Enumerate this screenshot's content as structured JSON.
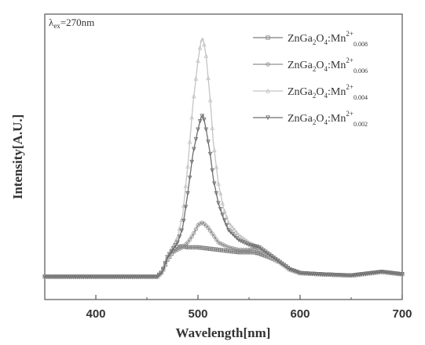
{
  "chart_data": {
    "type": "line",
    "xlabel": "Wavelength[nm]",
    "ylabel": "Intensity[A.U.]",
    "xlim": [
      350,
      700
    ],
    "ylim": [
      0,
      100
    ],
    "xticks": [
      400,
      500,
      600,
      700
    ],
    "grid": false,
    "annotation": {
      "lambda": "λ",
      "sub": "ex",
      "text": "=270nm"
    },
    "legend_position": "top-right",
    "series": [
      {
        "name": "ZnGa2O4:Mn2+ 0.008",
        "label": {
          "base": "ZnGa",
          "s1": "2",
          "mid": "O",
          "s2": "4",
          "tail": ":Mn",
          "sup": "2+",
          "sub": "0.008"
        },
        "color": "#7d7d7d",
        "marker": "square",
        "x": [
          350,
          400,
          460,
          465,
          470,
          475,
          480,
          485,
          490,
          495,
          500,
          510,
          520,
          530,
          540,
          550,
          555,
          560,
          570,
          580,
          590,
          600,
          620,
          650,
          680,
          700
        ],
        "y": [
          0,
          0,
          0,
          2,
          7,
          10,
          12,
          12.5,
          12,
          12,
          12,
          11.5,
          11,
          10.5,
          10,
          10,
          10,
          9.5,
          8,
          6,
          3,
          1.5,
          1,
          0.5,
          2,
          1
        ]
      },
      {
        "name": "ZnGa2O4:Mn2+ 0.006",
        "label": {
          "base": "ZnGa",
          "s1": "2",
          "mid": "O",
          "s2": "4",
          "tail": ":Mn",
          "sup": "2+",
          "sub": "0.006"
        },
        "color": "#8f8f8f",
        "marker": "circle",
        "x": [
          350,
          400,
          460,
          465,
          470,
          475,
          480,
          485,
          490,
          495,
          500,
          503,
          505,
          510,
          515,
          520,
          530,
          540,
          550,
          555,
          560,
          570,
          580,
          590,
          600,
          620,
          650,
          680,
          700
        ],
        "y": [
          0,
          0,
          0,
          2,
          7,
          10,
          11,
          12,
          14,
          17,
          21,
          22,
          22,
          20,
          17,
          14,
          12,
          11,
          11,
          11.5,
          11,
          9,
          6,
          3,
          1.5,
          1,
          0.5,
          2,
          1
        ]
      },
      {
        "name": "ZnGa2O4:Mn2+ 0.004",
        "label": {
          "base": "ZnGa",
          "s1": "2",
          "mid": "O",
          "s2": "4",
          "tail": ":Mn",
          "sup": "2+",
          "sub": "0.004"
        },
        "color": "#c4c4c4",
        "marker": "triangle-up",
        "x": [
          350,
          400,
          460,
          465,
          470,
          475,
          480,
          485,
          490,
          495,
          500,
          503,
          505,
          508,
          512,
          515,
          520,
          525,
          530,
          540,
          550,
          555,
          560,
          570,
          580,
          590,
          600,
          620,
          650,
          680,
          700
        ],
        "y": [
          0,
          0,
          0,
          2,
          8,
          12,
          16,
          25,
          45,
          70,
          88,
          96,
          97,
          90,
          72,
          55,
          38,
          28,
          22,
          17,
          14,
          13,
          12,
          9,
          6,
          3,
          1.5,
          1,
          0.5,
          2,
          1
        ]
      },
      {
        "name": "ZnGa2O4:Mn2+ 0.002",
        "label": {
          "base": "ZnGa",
          "s1": "2",
          "mid": "O",
          "s2": "4",
          "tail": ":Mn",
          "sup": "2+",
          "sub": "0.002"
        },
        "color": "#6e6e6e",
        "marker": "triangle-down",
        "x": [
          350,
          400,
          460,
          465,
          470,
          475,
          480,
          485,
          490,
          495,
          500,
          503,
          505,
          508,
          512,
          515,
          520,
          525,
          530,
          540,
          550,
          555,
          560,
          570,
          580,
          590,
          600,
          620,
          650,
          680,
          700
        ],
        "y": [
          0,
          0,
          0,
          2,
          8,
          11,
          14,
          20,
          34,
          50,
          60,
          65,
          66,
          60,
          50,
          40,
          30,
          24,
          19,
          15,
          13,
          12.5,
          12,
          9,
          6,
          3,
          1.5,
          1,
          0.5,
          2,
          1
        ]
      }
    ]
  }
}
